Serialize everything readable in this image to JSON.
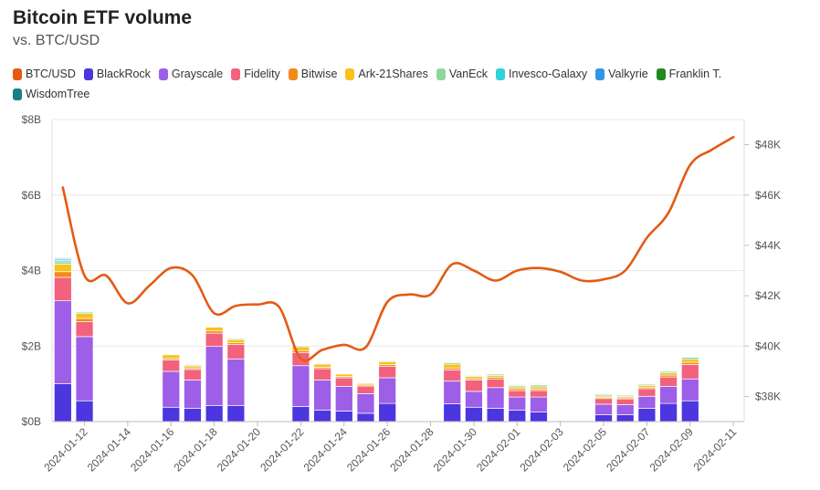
{
  "chart_data": {
    "type": "bar",
    "title": "Bitcoin ETF volume",
    "subtitle": "vs. BTC/USD",
    "left_axis": {
      "ticks": [
        "$0B",
        "$2B",
        "$4B",
        "$6B",
        "$8B"
      ],
      "min": 0,
      "max": 8
    },
    "right_axis": {
      "ticks": [
        "$38K",
        "$40K",
        "$42K",
        "$44K",
        "$46K",
        "$48K"
      ],
      "min": 37000,
      "max": 49000
    },
    "x_tick_labels": [
      "2024-01-12",
      "2024-01-14",
      "2024-01-16",
      "2024-01-18",
      "2024-01-20",
      "2024-01-22",
      "2024-01-24",
      "2024-01-26",
      "2024-01-28",
      "2024-01-30",
      "2024-02-01",
      "2024-02-03",
      "2024-02-05",
      "2024-02-07",
      "2024-02-09",
      "2024-02-11"
    ],
    "dates": [
      "2024-01-11",
      "2024-01-12",
      "2024-01-13",
      "2024-01-14",
      "2024-01-15",
      "2024-01-16",
      "2024-01-17",
      "2024-01-18",
      "2024-01-19",
      "2024-01-20",
      "2024-01-21",
      "2024-01-22",
      "2024-01-23",
      "2024-01-24",
      "2024-01-25",
      "2024-01-26",
      "2024-01-27",
      "2024-01-28",
      "2024-01-29",
      "2024-01-30",
      "2024-01-31",
      "2024-02-01",
      "2024-02-02",
      "2024-02-03",
      "2024-02-04",
      "2024-02-05",
      "2024-02-06",
      "2024-02-07",
      "2024-02-08",
      "2024-02-09",
      "2024-02-10",
      "2024-02-11"
    ],
    "grid": true,
    "legend_position": "top",
    "series": [
      {
        "name": "BlackRock",
        "color": "#4b36e0",
        "values": [
          1.0,
          0.55,
          0,
          0,
          0,
          0.38,
          0.35,
          0.42,
          0.42,
          0,
          0,
          0.4,
          0.3,
          0.28,
          0.22,
          0.48,
          0,
          0,
          0.47,
          0.38,
          0.35,
          0.3,
          0.25,
          0,
          0,
          0.18,
          0.18,
          0.35,
          0.48,
          0.55,
          0,
          0
        ]
      },
      {
        "name": "Grayscale",
        "color": "#9d5ee8",
        "values": [
          2.2,
          1.7,
          0,
          0,
          0,
          0.95,
          0.75,
          1.57,
          1.24,
          0,
          0,
          1.08,
          0.8,
          0.65,
          0.52,
          0.68,
          0,
          0,
          0.6,
          0.42,
          0.55,
          0.35,
          0.4,
          0,
          0,
          0.28,
          0.27,
          0.32,
          0.45,
          0.58,
          0,
          0
        ]
      },
      {
        "name": "Fidelity",
        "color": "#f2627d",
        "values": [
          0.62,
          0.4,
          0,
          0,
          0,
          0.3,
          0.28,
          0.35,
          0.38,
          0,
          0,
          0.35,
          0.3,
          0.23,
          0.2,
          0.3,
          0,
          0,
          0.3,
          0.3,
          0.22,
          0.17,
          0.17,
          0,
          0,
          0.15,
          0.15,
          0.2,
          0.25,
          0.38,
          0,
          0
        ]
      },
      {
        "name": "Bitwise",
        "color": "#f48a1a",
        "values": [
          0.15,
          0.08,
          0,
          0,
          0,
          0.04,
          0.04,
          0.06,
          0.05,
          0,
          0,
          0.05,
          0.04,
          0.04,
          0.03,
          0.05,
          0,
          0,
          0.05,
          0.04,
          0.05,
          0.05,
          0.04,
          0,
          0,
          0.03,
          0.03,
          0.04,
          0.05,
          0.06,
          0,
          0
        ]
      },
      {
        "name": "Ark-21Shares",
        "color": "#f7c21a",
        "values": [
          0.2,
          0.13,
          0,
          0,
          0,
          0.1,
          0.05,
          0.1,
          0.08,
          0,
          0,
          0.1,
          0.08,
          0.06,
          0.04,
          0.07,
          0,
          0,
          0.1,
          0.06,
          0.05,
          0.05,
          0.06,
          0,
          0,
          0.04,
          0.04,
          0.05,
          0.06,
          0.08,
          0,
          0
        ]
      },
      {
        "name": "VanEck",
        "color": "#8ed79a",
        "values": [
          0.06,
          0.04,
          0,
          0,
          0,
          0.02,
          0.03,
          0.02,
          0.03,
          0,
          0,
          0.03,
          0.02,
          0.02,
          0.02,
          0.03,
          0,
          0,
          0.04,
          0.02,
          0.04,
          0.04,
          0.05,
          0,
          0,
          0.04,
          0.03,
          0.03,
          0.04,
          0.05,
          0,
          0
        ]
      },
      {
        "name": "Invesco-Galaxy",
        "color": "#2fd3d8",
        "values": [
          0.04,
          0.02,
          0,
          0,
          0,
          0.01,
          0.02,
          0.01,
          0.01,
          0,
          0,
          0.02,
          0.01,
          0.01,
          0.01,
          0.02,
          0,
          0,
          0.02,
          0.02,
          0.02,
          0.01,
          0.02,
          0,
          0,
          0.02,
          0.01,
          0.02,
          0.02,
          0.02,
          0,
          0
        ]
      },
      {
        "name": "Valkyrie",
        "color": "#2e97e8",
        "values": [
          0.03,
          0.01,
          0,
          0,
          0,
          0.01,
          0.01,
          0.01,
          0.01,
          0,
          0,
          0.01,
          0.01,
          0.01,
          0.01,
          0.01,
          0,
          0,
          0.01,
          0.01,
          0.01,
          0.01,
          0.01,
          0,
          0,
          0.01,
          0.01,
          0.01,
          0.01,
          0.01,
          0,
          0
        ]
      },
      {
        "name": "Franklin T.",
        "color": "#1f8a1f",
        "values": [
          0.02,
          0.01,
          0,
          0,
          0,
          0.01,
          0.01,
          0.01,
          0.01,
          0,
          0,
          0.01,
          0.01,
          0.01,
          0.01,
          0.01,
          0,
          0,
          0.01,
          0.01,
          0.01,
          0.02,
          0.02,
          0,
          0,
          0.01,
          0.01,
          0.01,
          0.01,
          0.01,
          0,
          0
        ]
      },
      {
        "name": "WisdomTree",
        "color": "#177f86",
        "values": [
          0.02,
          0.01,
          0,
          0,
          0,
          0.01,
          0.01,
          0.01,
          0.01,
          0,
          0,
          0.01,
          0.01,
          0.01,
          0.01,
          0.01,
          0,
          0,
          0.01,
          0.01,
          0.01,
          0.01,
          0.01,
          0,
          0,
          0.01,
          0.01,
          0.01,
          0.01,
          0.01,
          0,
          0
        ]
      }
    ],
    "line": {
      "name": "BTC/USD",
      "color": "#e35b14",
      "values": [
        46300,
        42800,
        42800,
        41700,
        42400,
        43100,
        42800,
        41300,
        41600,
        41650,
        41550,
        39500,
        39850,
        40050,
        39950,
        41750,
        42050,
        42050,
        43250,
        43000,
        42600,
        43000,
        43100,
        42950,
        42600,
        42650,
        43000,
        44300,
        45300,
        47200,
        47800,
        48300
      ]
    }
  }
}
